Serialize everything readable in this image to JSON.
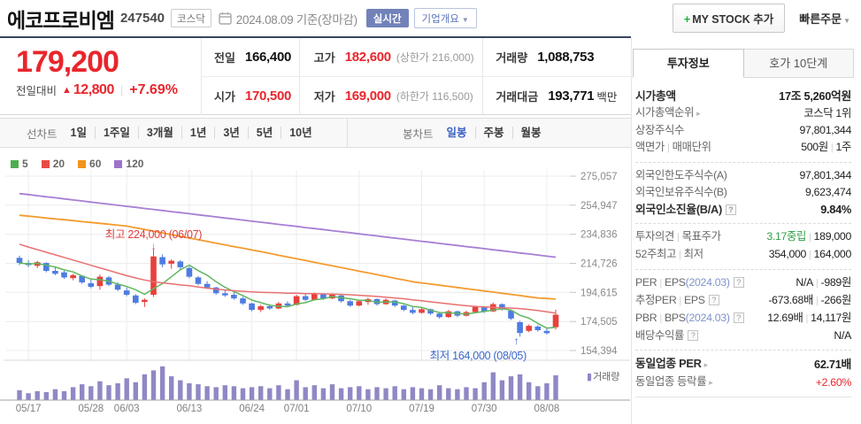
{
  "colors": {
    "accent_red": "#e8262c",
    "candle_up": "#e8403c",
    "candle_down": "#4e7ce2",
    "ma5_green": "#5fb75f",
    "ma20_red": "#e87070",
    "ma60_orange": "#f49b2f",
    "ma120_purple": "#a77fd3",
    "volume_purple": "#8f88c5",
    "anno_high_red": "#e03c3c",
    "anno_low_blue": "#3a66cc",
    "realtime_btn_blue": "#7282b9",
    "selected_tab_blue": "#3e63c4",
    "target_green": "#2f9e44"
  },
  "header": {
    "title": "에코프로비엠",
    "code": "247540",
    "market": "코스닥",
    "date_info": "2024.08.09 기준(장마감)",
    "realtime_label": "실시간",
    "overview_label": "기업개요",
    "mystock_plus": "+",
    "mystock_label": "MY STOCK 추가",
    "quick_order_label": "빠른주문"
  },
  "price": {
    "current": "179,200",
    "change_label": "전일대비",
    "change_dir": "▲",
    "change": "12,800",
    "change_pct": "+7.69%"
  },
  "summary": {
    "prev_label": "전일",
    "prev": "166,400",
    "high_label": "고가",
    "high": "182,600",
    "high_limit": "(상한가 216,000)",
    "volume_label": "거래량",
    "volume": "1,088,753",
    "open_label": "시가",
    "open": "170,500",
    "low_label": "저가",
    "low": "169,000",
    "low_limit": "(하한가 116,500)",
    "tvalue_label": "거래대금",
    "tvalue": "193,771",
    "tvalue_unit": "백만"
  },
  "toolbar": {
    "line_label": "선차트",
    "line_items": [
      "1일",
      "1주일",
      "3개월",
      "1년",
      "3년",
      "5년",
      "10년"
    ],
    "candle_label": "봉차트",
    "candle_items": [
      "일봉",
      "주봉",
      "월봉"
    ],
    "selected": "일봉"
  },
  "chart_data": {
    "type": "candlestick",
    "price_unit": "thousand KRW",
    "legend": [
      {
        "label": "5",
        "color": "#4cae4c"
      },
      {
        "label": "20",
        "color": "#e84a45"
      },
      {
        "label": "60",
        "color": "#f2941d"
      },
      {
        "label": "120",
        "color": "#9d73cd"
      }
    ],
    "volume_label": "거래량",
    "y_ticks": [
      {
        "label": "275,057",
        "v": 275.057
      },
      {
        "label": "254,947",
        "v": 254.947
      },
      {
        "label": "234,836",
        "v": 234.836
      },
      {
        "label": "214,726",
        "v": 214.726
      },
      {
        "label": "194,615",
        "v": 194.615
      },
      {
        "label": "174,505",
        "v": 174.505
      },
      {
        "label": "154,394",
        "v": 154.394
      }
    ],
    "x_ticks": [
      {
        "label": "05/17",
        "i": 2
      },
      {
        "label": "05/28",
        "i": 9
      },
      {
        "label": "06/03",
        "i": 13
      },
      {
        "label": "06/13",
        "i": 20
      },
      {
        "label": "06/24",
        "i": 27
      },
      {
        "label": "07/01",
        "i": 32
      },
      {
        "label": "07/10",
        "i": 39
      },
      {
        "label": "07/19",
        "i": 46
      },
      {
        "label": "07/30",
        "i": 53
      },
      {
        "label": "08/08",
        "i": 60
      }
    ],
    "candles": [
      [
        218.5,
        220,
        213.5,
        215
      ],
      [
        215,
        217,
        212,
        213.5
      ],
      [
        213,
        216.5,
        211.5,
        215.5
      ],
      [
        215,
        215.5,
        208.5,
        209.5
      ],
      [
        209.5,
        212,
        206.5,
        207.5
      ],
      [
        208.5,
        209.5,
        204,
        205
      ],
      [
        204.5,
        207.5,
        203,
        206.5
      ],
      [
        206,
        206.5,
        200.5,
        201.5
      ],
      [
        201,
        203.5,
        197.5,
        198.5
      ],
      [
        199,
        207,
        196.5,
        205.5
      ],
      [
        205,
        206,
        199,
        200
      ],
      [
        200,
        201.5,
        195.5,
        196.5
      ],
      [
        196,
        198,
        192,
        193
      ],
      [
        192.5,
        193.5,
        186.5,
        187.5
      ],
      [
        188,
        190.5,
        184.5,
        189.5
      ],
      [
        193,
        224,
        191.5,
        219.5
      ],
      [
        219,
        221,
        212,
        214
      ],
      [
        214.5,
        217.5,
        211,
        216.5
      ],
      [
        216,
        217,
        210.5,
        212
      ],
      [
        211.5,
        212.5,
        204.5,
        205.5
      ],
      [
        205,
        206,
        199.5,
        200.5
      ],
      [
        200.5,
        202.5,
        197,
        198
      ],
      [
        198,
        198.5,
        193,
        194
      ],
      [
        194,
        196.5,
        191.5,
        192.5
      ],
      [
        193,
        194.5,
        189.5,
        190.5
      ],
      [
        190.5,
        191.5,
        186,
        187
      ],
      [
        187,
        187.5,
        181.5,
        182.5
      ],
      [
        182.5,
        186,
        181,
        185
      ],
      [
        185,
        186.5,
        182.5,
        183.5
      ],
      [
        183.5,
        188,
        183,
        187
      ],
      [
        187,
        188.5,
        184.5,
        185.5
      ],
      [
        186,
        193,
        185.5,
        192
      ],
      [
        192,
        193.5,
        188.5,
        189.5
      ],
      [
        189.5,
        194.5,
        189,
        193.5
      ],
      [
        193.5,
        194,
        189.5,
        190.5
      ],
      [
        190.5,
        194,
        190,
        193
      ],
      [
        192.5,
        193,
        187.5,
        188.5
      ],
      [
        188.5,
        189.5,
        184.5,
        185.5
      ],
      [
        185.5,
        189.5,
        185,
        188.5
      ],
      [
        188,
        191,
        186,
        190
      ],
      [
        190,
        190.5,
        185.5,
        186.5
      ],
      [
        186.5,
        190.5,
        186,
        189.5
      ],
      [
        189,
        189.5,
        184.5,
        185.5
      ],
      [
        185.5,
        186,
        181.5,
        182.5
      ],
      [
        182.5,
        184.5,
        179.5,
        180.5
      ],
      [
        180.5,
        184,
        180,
        183
      ],
      [
        183,
        183.5,
        179,
        180
      ],
      [
        180,
        181,
        176.5,
        177.5
      ],
      [
        177.5,
        182.5,
        177,
        181.5
      ],
      [
        181.5,
        182,
        177.5,
        178.5
      ],
      [
        178.5,
        182,
        178,
        181
      ],
      [
        181,
        185.5,
        180.5,
        184.5
      ],
      [
        184.5,
        185,
        180.5,
        181.5
      ],
      [
        181.5,
        187.5,
        181,
        186.5
      ],
      [
        186.5,
        187,
        182,
        183
      ],
      [
        182,
        182.5,
        175.5,
        176.5
      ],
      [
        174,
        175,
        164,
        166.5
      ],
      [
        168,
        172.5,
        167,
        171.5
      ],
      [
        171,
        172,
        167.5,
        168.5
      ],
      [
        168,
        169.5,
        165.5,
        166.4
      ],
      [
        170.5,
        182.6,
        169,
        179.2
      ]
    ],
    "ma20": [
      228,
      226,
      224.2,
      222.4,
      220.6,
      218.8,
      217,
      215.2,
      213.4,
      211.6,
      209.8,
      208,
      206.2,
      204.6,
      203.2,
      202,
      201.2,
      200.6,
      199.8,
      199.2,
      198.4,
      197.6,
      196.9,
      196.3,
      195.8,
      195.4,
      195,
      194.7,
      194.5,
      194.3,
      194.1,
      194,
      193.8,
      193.7,
      193.6,
      193.5,
      193.3,
      193,
      192.6,
      192.2,
      191.8,
      191.3,
      190.8,
      190.2,
      189.5,
      188.8,
      188.1,
      187.4,
      186.7,
      186,
      185.4,
      184.9,
      184.5,
      184.2,
      184,
      183.8,
      183.4,
      182.8,
      182.1,
      181.2,
      180.3
    ],
    "ma60": [
      248,
      247.4,
      246.8,
      246.1,
      245.5,
      244.9,
      244.3,
      243.6,
      243,
      242.4,
      241.8,
      241.1,
      240.5,
      239.3,
      238.1,
      237,
      235.8,
      234.6,
      233.4,
      232.2,
      231.1,
      229.9,
      228.7,
      227.5,
      226.3,
      225.2,
      224,
      222.8,
      221.6,
      220.3,
      219.1,
      217.9,
      216.7,
      215.4,
      214.2,
      213,
      211.8,
      210.6,
      209.3,
      208.1,
      206.9,
      205.7,
      204.4,
      203.2,
      202,
      201.2,
      200.4,
      199.6,
      198.8,
      198,
      197.2,
      196.4,
      195.6,
      194.8,
      194,
      193.2,
      192.4,
      191.6,
      190.8,
      190.4,
      190
    ],
    "ma120": [
      263,
      262.3,
      261.5,
      260.8,
      260.1,
      259.3,
      258.6,
      257.9,
      257.1,
      256.4,
      255.7,
      254.9,
      254.2,
      253.5,
      252.7,
      252,
      251.3,
      250.5,
      249.8,
      249.1,
      248.3,
      247.6,
      246.9,
      246.1,
      245.4,
      244.7,
      243.9,
      243.2,
      242.5,
      241.7,
      241,
      240.3,
      239.5,
      238.8,
      238.1,
      237.3,
      236.6,
      235.9,
      235.1,
      234.4,
      233.7,
      232.9,
      232.2,
      231.5,
      230.7,
      230,
      229.3,
      228.5,
      227.8,
      227.1,
      226.3,
      225.6,
      224.9,
      224.1,
      223.4,
      222.7,
      221.9,
      221.2,
      220.5,
      219.7,
      219
    ],
    "volume_rel": [
      10,
      7,
      9,
      8,
      11,
      9,
      13,
      16,
      14,
      19,
      15,
      17,
      22,
      18,
      26,
      30,
      34,
      24,
      20,
      17,
      16,
      14,
      13,
      15,
      14,
      12,
      13,
      14,
      12,
      15,
      11,
      20,
      13,
      15,
      12,
      16,
      12,
      13,
      14,
      11,
      13,
      12,
      14,
      11,
      13,
      12,
      11,
      15,
      12,
      11,
      13,
      12,
      18,
      28,
      20,
      24,
      26,
      18,
      14,
      17,
      25
    ],
    "annotations": {
      "high": {
        "text": "최고 224,000 (06/07)",
        "i": 16
      },
      "low": {
        "text": "최저 164,000 (08/05)",
        "i": 57
      }
    }
  },
  "sidebar": {
    "tabs": [
      {
        "label": "투자정보",
        "active": true
      },
      {
        "label": "호가 10단계",
        "active": false
      }
    ],
    "groups": [
      [
        {
          "label": [
            {
              "t": "시가총액"
            }
          ],
          "value": [
            {
              "t": "17조 5,260억원"
            }
          ],
          "bold": true
        },
        {
          "label": [
            {
              "t": "시가총액순위"
            }
          ],
          "arrow": true,
          "value": [
            {
              "t": "코스닥 1위"
            }
          ]
        },
        {
          "label": [
            {
              "t": "상장주식수"
            }
          ],
          "value": [
            {
              "t": "97,801,344"
            }
          ]
        },
        {
          "label": [
            {
              "t": "액면가"
            },
            {
              "t": "|",
              "c": "sep"
            },
            {
              "t": "매매단위"
            }
          ],
          "value": [
            {
              "t": "500원"
            },
            {
              "t": "|",
              "c": "sep"
            },
            {
              "t": "1주"
            }
          ]
        }
      ],
      [
        {
          "label": [
            {
              "t": "외국인한도주식수(A)"
            }
          ],
          "value": [
            {
              "t": "97,801,344"
            }
          ]
        },
        {
          "label": [
            {
              "t": "외국인보유주식수(B)"
            }
          ],
          "value": [
            {
              "t": "9,623,474"
            }
          ]
        },
        {
          "label": [
            {
              "t": "외국인소진율(B/A)"
            }
          ],
          "help": true,
          "value": [
            {
              "t": "9.84%"
            }
          ],
          "bold": true
        }
      ],
      [
        {
          "label": [
            {
              "t": "투자의견"
            },
            {
              "t": "|",
              "c": "sep"
            },
            {
              "t": "목표주가"
            }
          ],
          "value": [
            {
              "t": "3.17중립",
              "c": "green"
            },
            {
              "t": "|",
              "c": "sep"
            },
            {
              "t": "189,000"
            }
          ]
        },
        {
          "label": [
            {
              "t": "52주최고"
            },
            {
              "t": "|",
              "c": "sep"
            },
            {
              "t": "최저"
            }
          ],
          "value": [
            {
              "t": "354,000"
            },
            {
              "t": "|",
              "c": "sep"
            },
            {
              "t": "164,000"
            }
          ]
        }
      ],
      [
        {
          "label": [
            {
              "t": "PER"
            },
            {
              "t": "|",
              "c": "sep"
            },
            {
              "t": "EPS"
            },
            {
              "t": "(2024.03)",
              "c": "blue"
            }
          ],
          "help": true,
          "value": [
            {
              "t": "N/A"
            },
            {
              "t": "|",
              "c": "sep"
            },
            {
              "t": "-989원"
            }
          ]
        },
        {
          "label": [
            {
              "t": "추정PER"
            },
            {
              "t": "|",
              "c": "sep"
            },
            {
              "t": "EPS"
            }
          ],
          "help": true,
          "value": [
            {
              "t": "-673.68배"
            },
            {
              "t": "|",
              "c": "sep"
            },
            {
              "t": "-266원"
            }
          ]
        },
        {
          "label": [
            {
              "t": "PBR"
            },
            {
              "t": "|",
              "c": "sep"
            },
            {
              "t": "BPS"
            },
            {
              "t": "(2024.03)",
              "c": "blue"
            }
          ],
          "help": true,
          "value": [
            {
              "t": "12.69배"
            },
            {
              "t": "|",
              "c": "sep"
            },
            {
              "t": "14,117원"
            }
          ]
        },
        {
          "label": [
            {
              "t": "배당수익률"
            }
          ],
          "help": true,
          "value": [
            {
              "t": "N/A"
            }
          ]
        }
      ],
      [
        {
          "label": [
            {
              "t": "동일업종 PER"
            }
          ],
          "arrow": true,
          "value": [
            {
              "t": "62.71배"
            }
          ],
          "bold": true
        },
        {
          "label": [
            {
              "t": "동일업종 등락률"
            }
          ],
          "arrow": true,
          "value": [
            {
              "t": "+2.60%",
              "c": "red"
            }
          ]
        }
      ]
    ]
  }
}
